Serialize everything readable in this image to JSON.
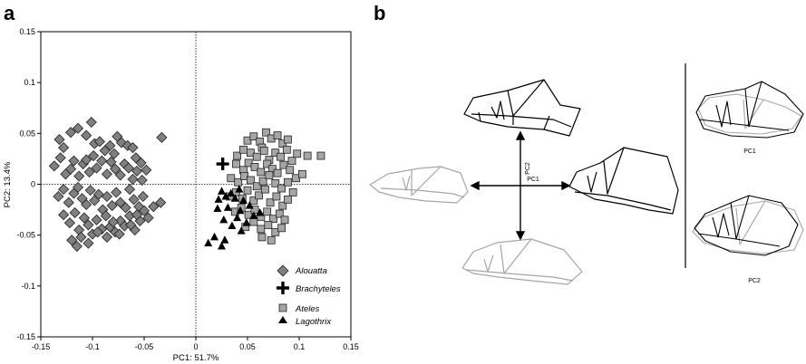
{
  "panels": {
    "a": "a",
    "b": "b"
  },
  "chart_data": {
    "type": "scatter",
    "xlabel": "PC1: 51.7%",
    "ylabel": "PC2: 13.4%",
    "xlim": [
      -0.15,
      0.15
    ],
    "ylim": [
      -0.15,
      0.15
    ],
    "x_ticks": [
      -0.15,
      -0.1,
      -0.05,
      0,
      0.05,
      0.1,
      0.15
    ],
    "y_ticks": [
      -0.15,
      -0.1,
      -0.05,
      0,
      0.05,
      0.1,
      0.15
    ],
    "x_tick_labels": [
      "-0.15",
      "-0.1",
      "-0.05",
      "0",
      "0.05",
      "0.1",
      "0.15"
    ],
    "y_tick_labels": [
      "-0.15",
      "-0.1",
      "-0.05",
      "0",
      "0.05",
      "0.1",
      "0.15"
    ],
    "reference_lines": {
      "x": 0,
      "y": 0,
      "style": "dotted"
    },
    "legend_position": "bottom-right",
    "series": [
      {
        "name": "Alouatta",
        "marker": "diamond",
        "color": "#808080",
        "points": [
          [
            -0.132,
            0.044
          ],
          [
            -0.128,
            0.036
          ],
          [
            -0.121,
            0.051
          ],
          [
            -0.114,
            0.055
          ],
          [
            -0.106,
            0.048
          ],
          [
            -0.101,
            0.061
          ],
          [
            -0.098,
            0.04
          ],
          [
            -0.093,
            0.042
          ],
          [
            -0.088,
            0.033
          ],
          [
            -0.083,
            0.038
          ],
          [
            -0.079,
            0.03
          ],
          [
            -0.076,
            0.047
          ],
          [
            -0.072,
            0.041
          ],
          [
            -0.066,
            0.038
          ],
          [
            -0.061,
            0.036
          ],
          [
            -0.058,
            0.026
          ],
          [
            -0.053,
            0.021
          ],
          [
            -0.048,
            0.014
          ],
          [
            -0.033,
            0.046
          ],
          [
            -0.137,
            0.018
          ],
          [
            -0.131,
            0.026
          ],
          [
            -0.126,
            0.01
          ],
          [
            -0.121,
            0.015
          ],
          [
            -0.118,
            0.023
          ],
          [
            -0.113,
            0.008
          ],
          [
            -0.109,
            0.02
          ],
          [
            -0.106,
            0.024
          ],
          [
            -0.103,
            0.012
          ],
          [
            -0.099,
            0.028
          ],
          [
            -0.096,
            0.016
          ],
          [
            -0.091,
            0.023
          ],
          [
            -0.086,
            0.01
          ],
          [
            -0.082,
            0.022
          ],
          [
            -0.078,
            0.015
          ],
          [
            -0.073,
            0.009
          ],
          [
            -0.069,
            0.02
          ],
          [
            -0.065,
            0.016
          ],
          [
            -0.061,
            0.005
          ],
          [
            -0.057,
            0.013
          ],
          [
            -0.052,
            0.004
          ],
          [
            -0.133,
            -0.012
          ],
          [
            -0.128,
            -0.005
          ],
          [
            -0.123,
            -0.018
          ],
          [
            -0.118,
            -0.009
          ],
          [
            -0.114,
            -0.003
          ],
          [
            -0.11,
            -0.014
          ],
          [
            -0.106,
            -0.02
          ],
          [
            -0.102,
            -0.006
          ],
          [
            -0.098,
            -0.016
          ],
          [
            -0.094,
            -0.01
          ],
          [
            -0.09,
            -0.025
          ],
          [
            -0.086,
            -0.012
          ],
          [
            -0.081,
            -0.021
          ],
          [
            -0.077,
            -0.008
          ],
          [
            -0.073,
            -0.018
          ],
          [
            -0.068,
            -0.023
          ],
          [
            -0.064,
            -0.005
          ],
          [
            -0.06,
            -0.015
          ],
          [
            -0.055,
            -0.022
          ],
          [
            -0.051,
            -0.012
          ],
          [
            -0.034,
            -0.018
          ],
          [
            -0.128,
            -0.03
          ],
          [
            -0.122,
            -0.038
          ],
          [
            -0.117,
            -0.028
          ],
          [
            -0.113,
            -0.045
          ],
          [
            -0.108,
            -0.033
          ],
          [
            -0.104,
            -0.04
          ],
          [
            -0.1,
            -0.049
          ],
          [
            -0.096,
            -0.035
          ],
          [
            -0.091,
            -0.044
          ],
          [
            -0.087,
            -0.031
          ],
          [
            -0.083,
            -0.042
          ],
          [
            -0.078,
            -0.047
          ],
          [
            -0.073,
            -0.036
          ],
          [
            -0.069,
            -0.041
          ],
          [
            -0.064,
            -0.031
          ],
          [
            -0.059,
            -0.045
          ],
          [
            -0.054,
            -0.036
          ],
          [
            -0.05,
            -0.026
          ],
          [
            -0.046,
            -0.033
          ],
          [
            -0.041,
            -0.022
          ],
          [
            -0.12,
            -0.055
          ],
          [
            -0.115,
            -0.061
          ],
          [
            -0.111,
            -0.052
          ],
          [
            -0.104,
            -0.058
          ],
          [
            -0.095,
            -0.047
          ],
          [
            -0.086,
            -0.052
          ],
          [
            -0.08,
            -0.037
          ],
          [
            -0.074,
            -0.049
          ],
          [
            -0.063,
            -0.04
          ],
          [
            -0.057,
            -0.03
          ]
        ]
      },
      {
        "name": "Brachyteles",
        "marker": "cross",
        "color": "#000000",
        "points": [
          [
            0.026,
            0.02
          ]
        ]
      },
      {
        "name": "Ateles",
        "marker": "square",
        "color": "#a6a6a6",
        "points": [
          [
            0.05,
            0.043
          ],
          [
            0.056,
            0.047
          ],
          [
            0.062,
            0.042
          ],
          [
            0.068,
            0.051
          ],
          [
            0.073,
            0.045
          ],
          [
            0.079,
            0.048
          ],
          [
            0.084,
            0.04
          ],
          [
            0.089,
            0.044
          ],
          [
            0.064,
            0.036
          ],
          [
            0.04,
            0.028
          ],
          [
            0.046,
            0.034
          ],
          [
            0.053,
            0.031
          ],
          [
            0.059,
            0.027
          ],
          [
            0.066,
            0.033
          ],
          [
            0.071,
            0.024
          ],
          [
            0.077,
            0.031
          ],
          [
            0.082,
            0.027
          ],
          [
            0.088,
            0.034
          ],
          [
            0.093,
            0.023
          ],
          [
            0.098,
            0.03
          ],
          [
            0.108,
            0.028
          ],
          [
            0.121,
            0.028
          ],
          [
            0.039,
            0.02
          ],
          [
            0.046,
            0.014
          ],
          [
            0.051,
            0.021
          ],
          [
            0.057,
            0.017
          ],
          [
            0.063,
            0.012
          ],
          [
            0.069,
            0.02
          ],
          [
            0.074,
            0.015
          ],
          [
            0.079,
            0.011
          ],
          [
            0.085,
            0.019
          ],
          [
            0.091,
            0.014
          ],
          [
            0.097,
            0.006
          ],
          [
            0.103,
            0.01
          ],
          [
            0.034,
            0.006
          ],
          [
            0.041,
            0.002
          ],
          [
            0.047,
            0.008
          ],
          [
            0.053,
            0.004
          ],
          [
            0.059,
            -0.002
          ],
          [
            0.065,
            0.003
          ],
          [
            0.071,
            0.009
          ],
          [
            0.077,
            0.001
          ],
          [
            0.083,
            -0.004
          ],
          [
            0.089,
            0.002
          ],
          [
            0.094,
            -0.008
          ],
          [
            0.033,
            -0.012
          ],
          [
            0.039,
            -0.008
          ],
          [
            0.045,
            -0.014
          ],
          [
            0.05,
            -0.006
          ],
          [
            0.056,
            -0.016
          ],
          [
            0.061,
            -0.011
          ],
          [
            0.067,
            -0.005
          ],
          [
            0.072,
            -0.018
          ],
          [
            0.078,
            -0.012
          ],
          [
            0.084,
            -0.021
          ],
          [
            0.089,
            -0.015
          ],
          [
            0.038,
            -0.027
          ],
          [
            0.044,
            -0.023
          ],
          [
            0.051,
            -0.03
          ],
          [
            0.057,
            -0.025
          ],
          [
            0.063,
            -0.032
          ],
          [
            0.069,
            -0.027
          ],
          [
            0.075,
            -0.034
          ],
          [
            0.081,
            -0.029
          ],
          [
            0.086,
            -0.035
          ],
          [
            0.048,
            -0.042
          ],
          [
            0.056,
            -0.037
          ],
          [
            0.063,
            -0.044
          ],
          [
            0.07,
            -0.04
          ],
          [
            0.077,
            -0.047
          ],
          [
            0.083,
            -0.043
          ],
          [
            0.064,
            -0.052
          ],
          [
            0.073,
            -0.055
          ]
        ]
      },
      {
        "name": "Lagothrix",
        "marker": "triangle",
        "color": "#000000",
        "points": [
          [
            0.025,
            -0.007
          ],
          [
            0.034,
            -0.009
          ],
          [
            0.042,
            -0.005
          ],
          [
            0.022,
            -0.015
          ],
          [
            0.029,
            -0.012
          ],
          [
            0.038,
            -0.014
          ],
          [
            0.046,
            -0.016
          ],
          [
            0.021,
            -0.024
          ],
          [
            0.031,
            -0.023
          ],
          [
            0.043,
            -0.026
          ],
          [
            0.052,
            -0.021
          ],
          [
            0.062,
            -0.028
          ],
          [
            0.027,
            -0.035
          ],
          [
            0.04,
            -0.033
          ],
          [
            0.049,
            -0.038
          ],
          [
            0.056,
            -0.031
          ],
          [
            0.035,
            -0.041
          ],
          [
            0.044,
            -0.046
          ],
          [
            0.018,
            -0.052
          ],
          [
            0.028,
            -0.055
          ],
          [
            0.012,
            -0.058
          ],
          [
            0.025,
            -0.061
          ]
        ]
      }
    ]
  },
  "panel_b": {
    "arrow_labels": {
      "pc2": "PC2",
      "pc1": "PC1"
    },
    "comparison_labels": {
      "pc1": "PC1",
      "pc2": "PC2"
    },
    "colors": {
      "positive": "#000000",
      "negative": "#a6a6a6"
    }
  }
}
